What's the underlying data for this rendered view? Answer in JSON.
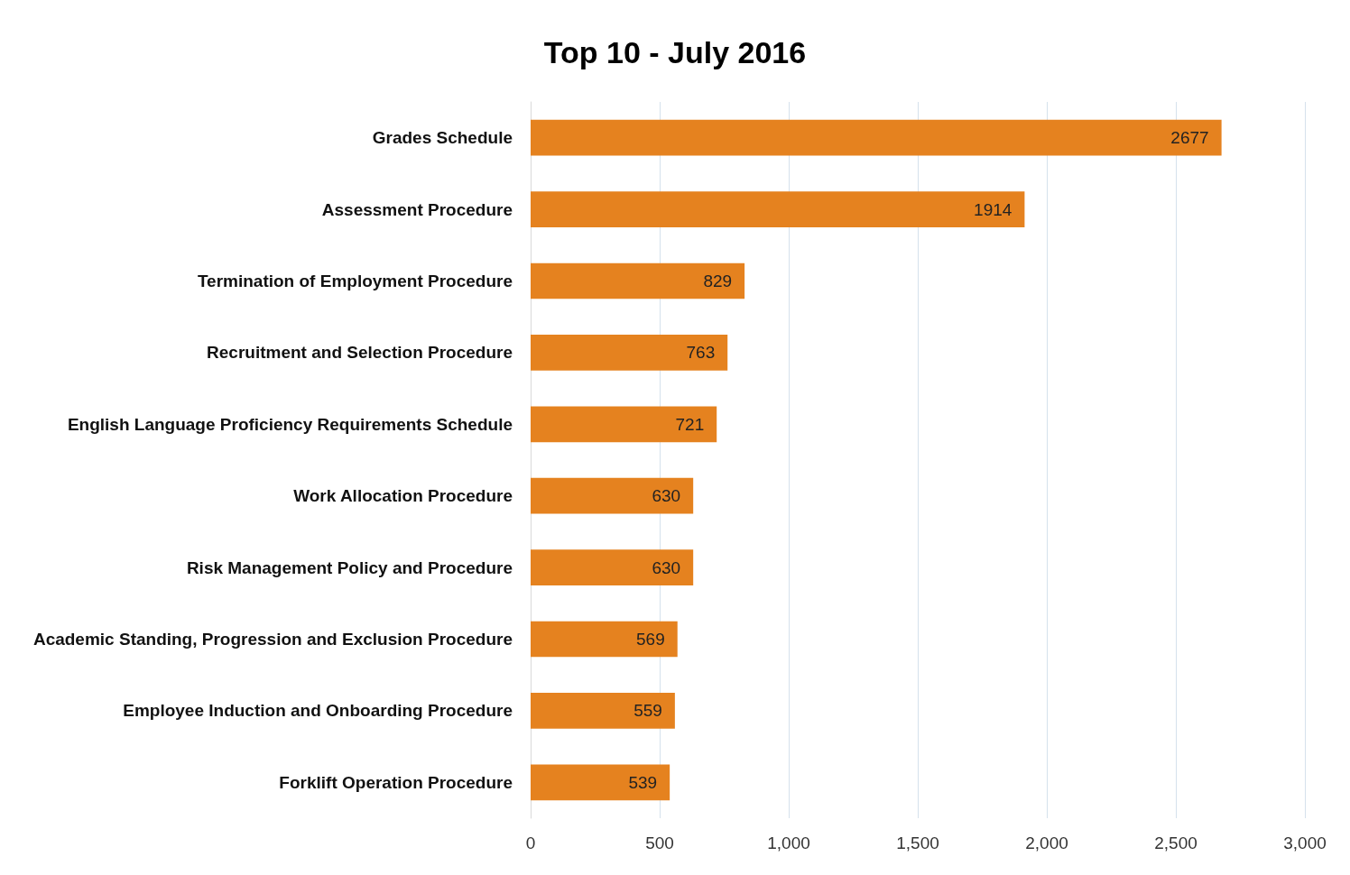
{
  "chart_data": {
    "type": "bar",
    "orientation": "horizontal",
    "title": "Top 10 - July 2016",
    "categories": [
      "Grades Schedule",
      "Assessment Procedure",
      "Termination of Employment Procedure",
      "Recruitment and Selection Procedure",
      "English Language Proficiency Requirements Schedule",
      "Work Allocation Procedure",
      "Risk Management Policy and Procedure",
      "Academic Standing, Progression and Exclusion Procedure",
      "Employee Induction and Onboarding Procedure",
      "Forklift Operation Procedure"
    ],
    "values": [
      2677,
      1914,
      829,
      763,
      721,
      630,
      630,
      569,
      559,
      539
    ],
    "color": "#e5821f",
    "xlim": [
      0,
      3000
    ],
    "xticks": [
      0,
      500,
      {
        "value": 1000,
        "label": "1,000"
      },
      {
        "value": 1500,
        "label": "1,500"
      },
      {
        "value": 2000,
        "label": "2,000"
      },
      {
        "value": 2500,
        "label": "2,500"
      },
      {
        "value": 3000,
        "label": "3,000"
      }
    ],
    "grid": "x",
    "data_labels": true
  }
}
